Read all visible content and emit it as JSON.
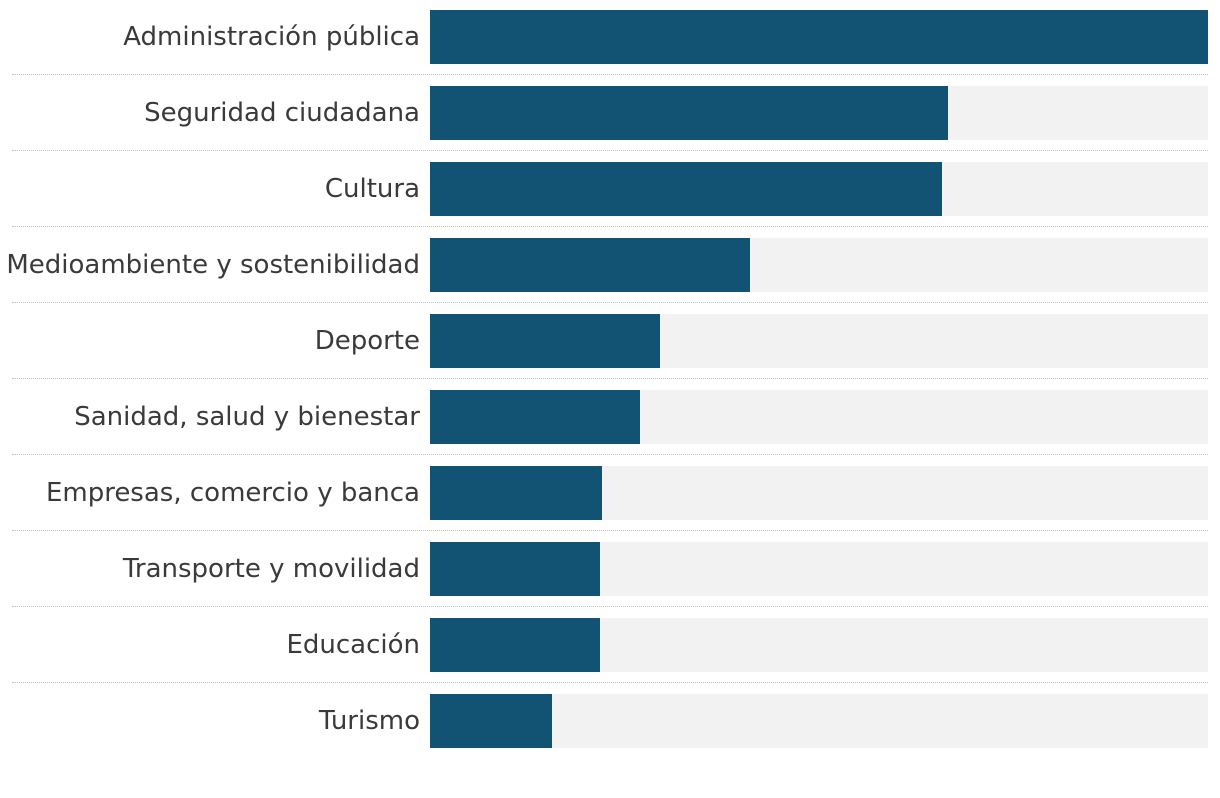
{
  "chart_data": {
    "type": "bar",
    "orientation": "horizontal",
    "categories": [
      "Administración pública",
      "Seguridad ciudadana",
      "Cultura",
      "Medioambiente y sostenibilidad",
      "Deporte",
      "Sanidad, salud y bienestar",
      "Empresas, comercio y banca",
      "Transporte y movilidad",
      "Educación",
      "Turismo"
    ],
    "values": [
      100,
      66.6,
      65.8,
      41.1,
      29.6,
      27.0,
      22.1,
      21.9,
      21.9,
      15.7
    ],
    "xlim": [
      0,
      100
    ],
    "grid": false,
    "legend": "none",
    "colors": {
      "bar": "#125373",
      "track": "#f2f2f2",
      "label": "#3a3a3a",
      "divider": "#c4c4c4"
    }
  }
}
